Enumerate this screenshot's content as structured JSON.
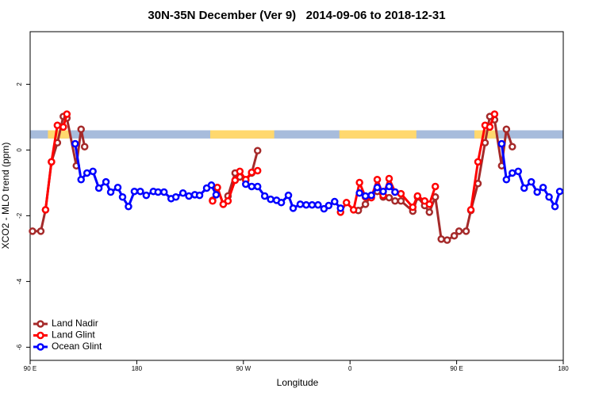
{
  "chart_data": {
    "type": "line",
    "title": "30N-35N December (Ver 9)   2014-09-06 to 2018-12-31",
    "x_label": "Longitude",
    "y_label": "XCO2 - MLO trend (ppm)",
    "xlim": [
      90,
      540
    ],
    "ylim": [
      -6.4,
      3.6
    ],
    "xticks": [
      {
        "value": 90,
        "label": "90 E"
      },
      {
        "value": 180,
        "label": "180"
      },
      {
        "value": 270,
        "label": "90 W"
      },
      {
        "value": 360,
        "label": "0"
      },
      {
        "value": 450,
        "label": "90 E"
      },
      {
        "value": 540,
        "label": "180"
      }
    ],
    "yticks": [
      2,
      0,
      -2,
      -4,
      -6
    ],
    "legend": "bottom-left",
    "band": {
      "ylim": [
        0.35,
        0.6
      ],
      "color": "#a7bcdc",
      "land_color": "#ffd86e",
      "land": [
        [
          105,
          123
        ],
        [
          242,
          296
        ],
        [
          351,
          416
        ],
        [
          465,
          483
        ]
      ]
    },
    "series": [
      {
        "name": "Land Nadir",
        "color": "#a52a2a",
        "x": [
          92,
          99,
          103,
          108,
          113,
          118,
          121,
          129,
          133,
          136,
          null,
          244,
          248,
          253,
          257,
          263,
          267,
          272,
          277,
          282,
          null,
          367,
          373,
          378,
          383,
          388,
          393,
          398,
          403,
          413,
          417,
          423,
          427,
          432,
          437,
          442,
          448,
          452,
          458,
          462,
          468,
          474,
          478,
          482,
          488,
          492,
          497
        ],
        "values": [
          -2.47,
          -2.47,
          -1.82,
          -0.36,
          0.22,
          1.02,
          0.97,
          -0.48,
          0.63,
          0.1,
          null,
          -1.53,
          -1.14,
          -1.65,
          -1.4,
          -0.7,
          -0.82,
          -0.92,
          -0.7,
          -0.02,
          null,
          -1.84,
          -1.65,
          -1.38,
          -1.26,
          -1.43,
          -1.45,
          -1.55,
          -1.55,
          -1.86,
          -1.43,
          -1.69,
          -1.89,
          -1.43,
          -2.71,
          -2.74,
          -2.61,
          -2.47,
          -2.47,
          -1.84,
          -1.02,
          0.22,
          1.02,
          0.92,
          -0.48,
          0.63,
          0.1
        ]
      },
      {
        "name": "Land Glint",
        "color": "#ff0000",
        "x": [
          103,
          108,
          113,
          118,
          121,
          null,
          244,
          248,
          253,
          257,
          263,
          267,
          272,
          277,
          282,
          null,
          352,
          357,
          363,
          368,
          373,
          378,
          383,
          388,
          393,
          398,
          403,
          413,
          417,
          423,
          427,
          432,
          null,
          462,
          468,
          474,
          478,
          482
        ],
        "values": [
          -1.82,
          -0.36,
          0.75,
          0.7,
          1.09,
          null,
          -1.55,
          -1.14,
          -1.65,
          -1.55,
          -0.92,
          -0.65,
          -0.9,
          -0.68,
          -0.63,
          null,
          -1.89,
          -1.6,
          -1.82,
          -0.99,
          -1.43,
          -1.45,
          -0.9,
          -1.38,
          -0.87,
          -1.28,
          -1.33,
          -1.74,
          -1.4,
          -1.55,
          -1.65,
          -1.11,
          null,
          -1.82,
          -0.36,
          0.75,
          0.7,
          1.09
        ]
      },
      {
        "name": "Ocean Glint",
        "color": "#0000ff",
        "x": [
          128,
          133,
          138,
          143,
          148,
          154,
          158,
          164,
          168,
          173,
          178,
          183,
          188,
          194,
          198,
          203,
          209,
          213,
          219,
          224,
          229,
          233,
          239,
          243,
          247,
          null,
          272,
          277,
          282,
          288,
          293,
          298,
          302,
          308,
          312,
          318,
          323,
          328,
          333,
          338,
          342,
          347,
          352,
          null,
          368,
          373,
          378,
          383,
          388,
          393,
          398,
          null,
          488,
          492,
          497,
          502,
          507,
          513,
          518,
          523,
          528,
          533,
          537
        ],
        "values": [
          0.19,
          -0.9,
          -0.7,
          -0.65,
          -1.16,
          -0.97,
          -1.28,
          -1.14,
          -1.43,
          -1.72,
          -1.26,
          -1.26,
          -1.38,
          -1.26,
          -1.28,
          -1.28,
          -1.48,
          -1.43,
          -1.31,
          -1.4,
          -1.36,
          -1.38,
          -1.16,
          -1.07,
          -1.36,
          null,
          -1.04,
          -1.11,
          -1.11,
          -1.4,
          -1.5,
          -1.53,
          -1.6,
          -1.38,
          -1.77,
          -1.65,
          -1.67,
          -1.67,
          -1.67,
          -1.79,
          -1.69,
          -1.57,
          -1.77,
          null,
          -1.31,
          -1.4,
          -1.38,
          -1.14,
          -1.26,
          -1.11,
          -1.28,
          null,
          0.19,
          -0.9,
          -0.7,
          -0.65,
          -1.16,
          -0.97,
          -1.28,
          -1.14,
          -1.43,
          -1.72,
          -1.26
        ]
      }
    ]
  }
}
